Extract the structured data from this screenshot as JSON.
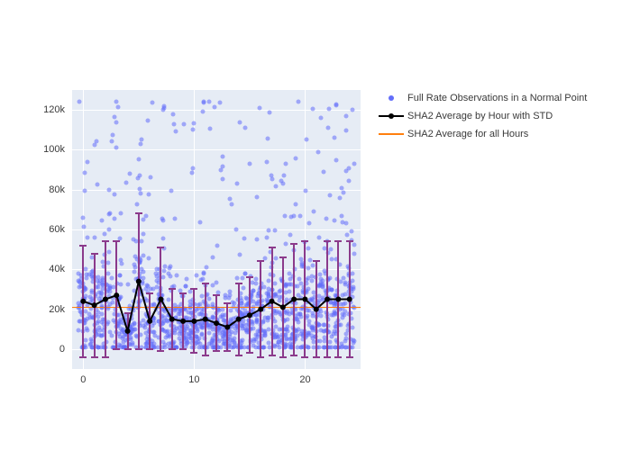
{
  "chart": {
    "type": "scatter-with-line",
    "background_color": "#e6ecf5",
    "grid_color": "#ffffff",
    "xlim": [
      -1,
      25
    ],
    "ylim": [
      -10000,
      130000
    ],
    "xticks": [
      0,
      10,
      20
    ],
    "yticks": [
      0,
      20000,
      40000,
      60000,
      80000,
      100000,
      120000
    ],
    "ytick_labels": [
      "0",
      "20k",
      "40k",
      "60k",
      "80k",
      "100k",
      "120k"
    ],
    "xtick_labels": [
      "0",
      "10",
      "20"
    ],
    "scatter_color": "#636efa",
    "scatter_opacity": 0.55,
    "line_color": "#000000",
    "line_width": 2,
    "marker_color": "#000000",
    "marker_size": 6,
    "error_color": "#8b3a8b",
    "error_cap_width": 8,
    "avg_line_color": "#ff7f0e",
    "avg_value": 21000,
    "label_fontsize": 11,
    "hourly": [
      {
        "x": 0,
        "mean": 24000,
        "std": 28000
      },
      {
        "x": 1,
        "mean": 22000,
        "std": 26000
      },
      {
        "x": 2,
        "mean": 25000,
        "std": 29000
      },
      {
        "x": 3,
        "mean": 27000,
        "std": 27000
      },
      {
        "x": 4,
        "mean": 9000,
        "std": 9000
      },
      {
        "x": 5,
        "mean": 34000,
        "std": 34000
      },
      {
        "x": 6,
        "mean": 14000,
        "std": 14000
      },
      {
        "x": 7,
        "mean": 25000,
        "std": 26000
      },
      {
        "x": 8,
        "mean": 15000,
        "std": 15000
      },
      {
        "x": 9,
        "mean": 14000,
        "std": 14000
      },
      {
        "x": 10,
        "mean": 14000,
        "std": 16000
      },
      {
        "x": 11,
        "mean": 15000,
        "std": 18000
      },
      {
        "x": 12,
        "mean": 13000,
        "std": 14000
      },
      {
        "x": 13,
        "mean": 11000,
        "std": 12000
      },
      {
        "x": 14,
        "mean": 15000,
        "std": 18000
      },
      {
        "x": 15,
        "mean": 17000,
        "std": 19000
      },
      {
        "x": 16,
        "mean": 20000,
        "std": 24000
      },
      {
        "x": 17,
        "mean": 24000,
        "std": 27000
      },
      {
        "x": 18,
        "mean": 21000,
        "std": 25000
      },
      {
        "x": 19,
        "mean": 25000,
        "std": 28000
      },
      {
        "x": 20,
        "mean": 25000,
        "std": 29000
      },
      {
        "x": 21,
        "mean": 20000,
        "std": 24000
      },
      {
        "x": 22,
        "mean": 25000,
        "std": 29000
      },
      {
        "x": 23,
        "mean": 25000,
        "std": 29000
      },
      {
        "x": 24,
        "mean": 25000,
        "std": 29000
      }
    ],
    "scatter_density": 60,
    "scatter_max_y": 125000
  },
  "legend": {
    "items": [
      {
        "label": "Full Rate Observations in a Normal Point",
        "type": "dot",
        "color": "#636efa"
      },
      {
        "label": "SHA2 Average by Hour with STD",
        "type": "line-dot",
        "color": "#000000"
      },
      {
        "label": "SHA2 Average for all Hours",
        "type": "line",
        "color": "#ff7f0e"
      }
    ]
  }
}
